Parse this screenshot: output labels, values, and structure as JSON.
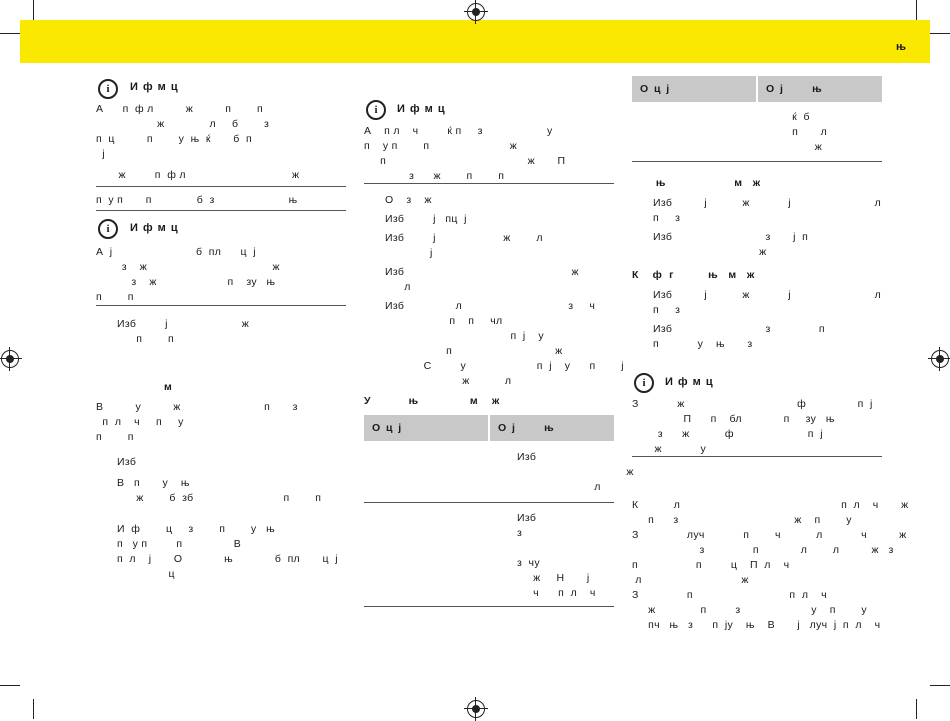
{
  "header": {
    "band_color": "#fbe800",
    "section_mark": "њ"
  },
  "col1": {
    "info1": {
      "title": "И ф  м ц",
      "lines": [
        "А      п  ф л          ж          п        п",
        "                   ж              л     б        з",
        "п  ц          п        у  њ  ќ       б  п",
        "  ј",
        "       ж         п  ф л                                 ж"
      ],
      "foot": "п  у п       п              б  з                       њ"
    },
    "info2": {
      "title": "И ф  м ц",
      "lines": [
        "А  ј                          б  пл      ц  ј",
        "        з    ж                                       ж",
        "           з    ж                      п    зу   њ",
        "п        п"
      ]
    },
    "block1": [
      "Изб         ј                       ж",
      "      п        п"
    ],
    "heading": "м",
    "para": [
      "В          у          ж                          п       з",
      "  п  л    ч     п     у",
      "п        п"
    ],
    "steps": [
      "Изб",
      "В   п       у    њ",
      "      ж        б  зб                            п        п",
      "И  ф        ц     з        п        у   њ",
      "п   у п         п                В",
      "п  л    ј       О             њ             б  пл       ц  ј",
      "                ц"
    ]
  },
  "col2": {
    "info": {
      "title": "И ф  м ц",
      "lines": [
        "А    п л    ч         ќ п     з                    у",
        "п    у п        п                         ж",
        "     п                                            ж       П",
        "              з      ж        п        п"
      ]
    },
    "list": [
      "О    з    ж",
      "Изб         ј   пц  ј",
      "Изб         ј                     ж        л",
      "              ј",
      "Изб                                                    ж",
      "      л",
      "Изб                л                                 з     ч",
      "                    п    п     чл",
      "                                       п  ј    у",
      "                   п                                ж",
      "            С         у                      п  ј    у      п        ј",
      "                        ж           л"
    ],
    "table_title": "У           њ               м    ж",
    "table": {
      "headers": [
        "О  ц  ј",
        "О  ј          њ"
      ],
      "rows": [
        [
          "",
          "Изб\n                                  ж\n                        л"
        ],
        [
          "",
          "Изб\nз\n\nз  чу\n     ж     Н       ј\n     ч      п  л    ч"
        ]
      ]
    }
  },
  "col3": {
    "table": {
      "headers": [
        "О  ц  ј",
        "О  ј          њ"
      ],
      "rows": [
        [
          "",
          "          ќ  б\n          п       л\n                 ж"
        ]
      ]
    },
    "h1": "       њ                    м   ж",
    "list1": [
      "Изб          ј           ж            ј                          л",
      "п     з",
      "Изб                             з       ј  п",
      "                                 ж"
    ],
    "h2": "К    ф  г          њ   м   ж",
    "list2": [
      "Изб          ј           ж            ј                          л",
      "п     з",
      "Изб                             з               п",
      "п            у    њ       з"
    ],
    "info": {
      "title": "И ф  м ц",
      "lines": [
        "З            ж                                   ф                п  ј",
        "                П      п    бл             п     зу   њ",
        "        з      ж           ф                       п  ј",
        "       ж            у"
      ]
    },
    "para": [
      "К           л                                                  п  л    ч       ж",
      "     п      з                                    ж    п        у",
      "З               луч            п        ч           л            ч          ж",
      "                     з               п             л        л          ж   з",
      "п                  п         ц    П  л    ч",
      " л                               ж",
      "З               п                              п  л    ч",
      "     ж              п         з                      у    п        у",
      "     пч   њ   з      п  ју    њ    В       ј   луч  ј  п  л    ч"
    ]
  }
}
